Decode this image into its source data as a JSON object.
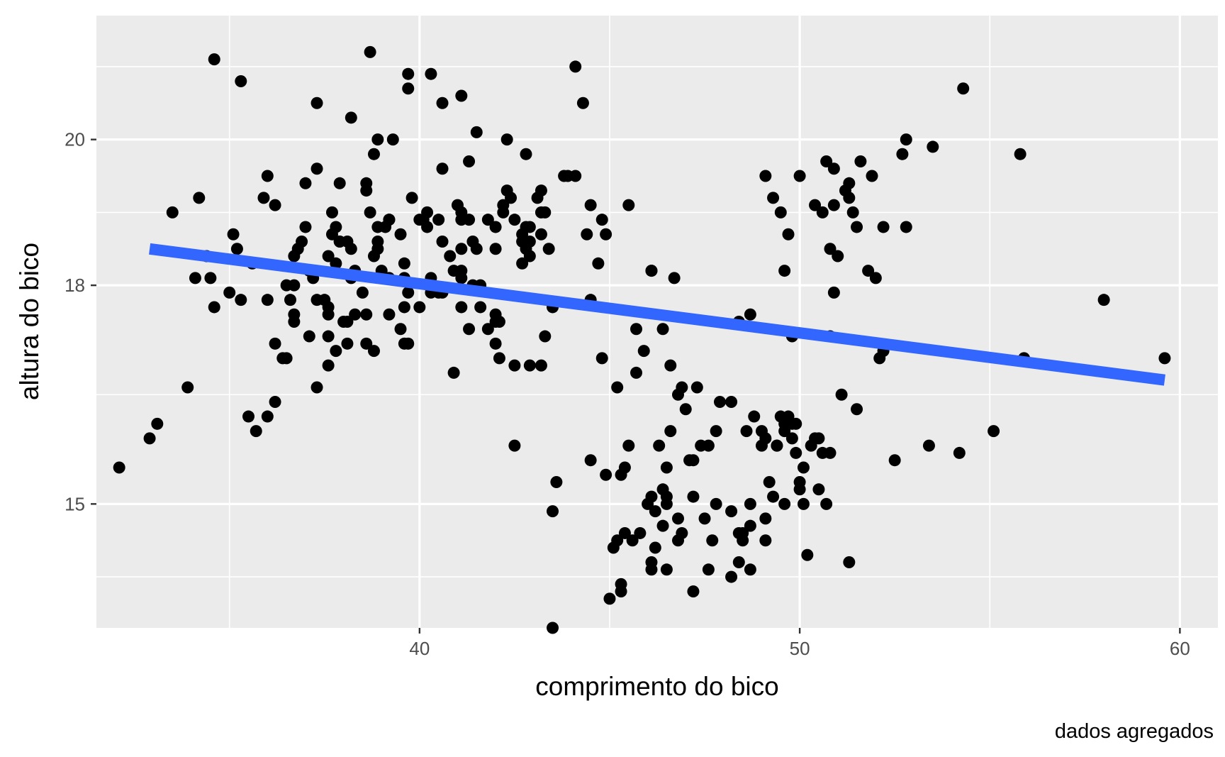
{
  "chart_data": {
    "type": "scatter",
    "title": "",
    "xlabel": "comprimento do bico",
    "ylabel": "altura do bico",
    "caption": "dados agregados",
    "xlim": [
      31.5,
      61
    ],
    "ylim": [
      13.3,
      21.7
    ],
    "x_ticks": [
      40,
      50,
      60
    ],
    "y_ticks": [
      15,
      18,
      20
    ],
    "x_tick_labels": [
      "40",
      "50",
      "60"
    ],
    "y_tick_labels": [
      "15",
      "18",
      "20"
    ],
    "x_minor_ticks": [
      35,
      45,
      55
    ],
    "y_minor_ticks": [
      14,
      16.5,
      19,
      21
    ],
    "grid": true,
    "legend": "none",
    "colors": {
      "panel": "#ebebeb",
      "grid": "#ffffff",
      "point": "#000000",
      "trend": "#3366ff"
    },
    "trend_line": {
      "x": [
        32.9,
        59.6
      ],
      "y": [
        18.5,
        16.7
      ]
    },
    "points": [
      [
        32.9,
        15.9
      ],
      [
        33.9,
        16.6
      ],
      [
        34.2,
        19.2
      ],
      [
        34.6,
        17.7
      ],
      [
        35.1,
        18.7
      ],
      [
        35.2,
        18.5
      ],
      [
        35.3,
        20.8
      ],
      [
        35.3,
        17.8
      ],
      [
        35.6,
        18.3
      ],
      [
        36.0,
        19.5
      ],
      [
        36.2,
        19.1
      ],
      [
        36.2,
        16.4
      ],
      [
        36.0,
        16.2
      ],
      [
        36.5,
        17.0
      ],
      [
        36.5,
        18.0
      ],
      [
        36.7,
        18.0
      ],
      [
        36.7,
        18.4
      ],
      [
        36.7,
        17.6
      ],
      [
        36.7,
        17.5
      ],
      [
        37.0,
        19.4
      ],
      [
        37.0,
        18.8
      ],
      [
        37.1,
        17.3
      ],
      [
        37.1,
        18.2
      ],
      [
        37.3,
        19.6
      ],
      [
        37.3,
        17.8
      ],
      [
        37.3,
        16.6
      ],
      [
        37.5,
        17.8
      ],
      [
        37.6,
        17.7
      ],
      [
        37.6,
        17.6
      ],
      [
        37.6,
        18.4
      ],
      [
        37.6,
        17.3
      ],
      [
        37.7,
        18.7
      ],
      [
        37.7,
        19.0
      ],
      [
        37.8,
        18.8
      ],
      [
        37.8,
        18.3
      ],
      [
        37.9,
        18.6
      ],
      [
        37.9,
        19.4
      ],
      [
        38.0,
        17.5
      ],
      [
        38.1,
        17.2
      ],
      [
        38.1,
        17.5
      ],
      [
        38.2,
        18.5
      ],
      [
        38.2,
        20.3
      ],
      [
        38.3,
        17.6
      ],
      [
        38.3,
        18.2
      ],
      [
        38.6,
        19.4
      ],
      [
        38.6,
        19.3
      ],
      [
        38.6,
        17.2
      ],
      [
        38.6,
        17.6
      ],
      [
        38.7,
        19.0
      ],
      [
        38.8,
        17.1
      ],
      [
        38.8,
        19.8
      ],
      [
        38.9,
        20.0
      ],
      [
        38.9,
        18.6
      ],
      [
        38.9,
        18.8
      ],
      [
        38.9,
        18.5
      ],
      [
        39.1,
        18.8
      ],
      [
        39.2,
        18.9
      ],
      [
        39.2,
        17.6
      ],
      [
        39.2,
        18.1
      ],
      [
        39.2,
        18.9
      ],
      [
        39.3,
        20.0
      ],
      [
        39.5,
        18.7
      ],
      [
        39.6,
        17.7
      ],
      [
        39.6,
        18.3
      ],
      [
        39.7,
        17.2
      ],
      [
        39.7,
        17.9
      ],
      [
        39.7,
        20.9
      ],
      [
        39.8,
        19.2
      ],
      [
        40.0,
        17.7
      ],
      [
        40.0,
        18.9
      ],
      [
        40.2,
        19.0
      ],
      [
        40.2,
        18.8
      ],
      [
        40.3,
        18.1
      ],
      [
        40.3,
        17.9
      ],
      [
        40.3,
        20.9
      ],
      [
        40.5,
        18.9
      ],
      [
        40.6,
        19.6
      ],
      [
        40.6,
        20.5
      ],
      [
        40.8,
        18.4
      ],
      [
        40.9,
        18.2
      ],
      [
        41.0,
        19.1
      ],
      [
        41.1,
        20.6
      ],
      [
        41.1,
        18.2
      ],
      [
        41.1,
        18.5
      ],
      [
        41.1,
        17.7
      ],
      [
        41.1,
        18.1
      ],
      [
        41.1,
        19.0
      ],
      [
        41.1,
        18.9
      ],
      [
        41.3,
        18.9
      ],
      [
        41.3,
        17.4
      ],
      [
        41.4,
        18.0
      ],
      [
        41.5,
        20.1
      ],
      [
        41.5,
        18.5
      ],
      [
        41.8,
        18.9
      ],
      [
        41.8,
        17.4
      ],
      [
        42.0,
        18.5
      ],
      [
        42.0,
        18.8
      ],
      [
        42.0,
        17.6
      ],
      [
        42.0,
        17.5
      ],
      [
        42.1,
        17.0
      ],
      [
        42.1,
        17.5
      ],
      [
        42.2,
        19.0
      ],
      [
        42.2,
        19.1
      ],
      [
        42.3,
        19.3
      ],
      [
        42.3,
        20.0
      ],
      [
        42.4,
        19.2
      ],
      [
        42.5,
        16.9
      ],
      [
        42.5,
        18.9
      ],
      [
        42.7,
        18.7
      ],
      [
        42.7,
        18.3
      ],
      [
        42.7,
        18.6
      ],
      [
        42.8,
        18.8
      ],
      [
        42.9,
        18.8
      ],
      [
        42.9,
        18.6
      ],
      [
        42.9,
        18.4
      ],
      [
        43.1,
        19.2
      ],
      [
        43.2,
        18.7
      ],
      [
        43.2,
        19.3
      ],
      [
        43.2,
        16.9
      ],
      [
        43.3,
        19.0
      ],
      [
        43.5,
        17.7
      ],
      [
        43.5,
        14.9
      ],
      [
        43.6,
        15.3
      ],
      [
        43.9,
        19.5
      ],
      [
        44.1,
        19.5
      ],
      [
        44.1,
        21.0
      ],
      [
        44.3,
        20.5
      ],
      [
        44.5,
        17.8
      ],
      [
        44.5,
        15.6
      ],
      [
        44.7,
        18.3
      ],
      [
        44.8,
        17.0
      ],
      [
        44.8,
        18.9
      ],
      [
        44.9,
        18.7
      ],
      [
        45.0,
        13.7
      ],
      [
        45.3,
        15.4
      ],
      [
        45.3,
        13.8
      ],
      [
        45.4,
        14.6
      ],
      [
        45.5,
        19.1
      ],
      [
        45.7,
        17.4
      ],
      [
        46.1,
        18.2
      ],
      [
        46.2,
        14.4
      ],
      [
        46.1,
        14.1
      ],
      [
        46.1,
        14.2
      ],
      [
        46.1,
        15.1
      ],
      [
        46.1,
        18.2
      ],
      [
        46.4,
        14.7
      ],
      [
        46.5,
        15.0
      ],
      [
        46.5,
        15.1
      ],
      [
        46.5,
        15.5
      ],
      [
        46.5,
        14.1
      ],
      [
        46.6,
        16.9
      ],
      [
        46.8,
        14.5
      ],
      [
        46.8,
        16.5
      ],
      [
        46.8,
        14.8
      ],
      [
        47.1,
        15.6
      ],
      [
        47.2,
        15.1
      ],
      [
        47.2,
        13.8
      ],
      [
        47.2,
        15.6
      ],
      [
        47.4,
        15.8
      ],
      [
        47.5,
        14.8
      ],
      [
        47.6,
        14.1
      ],
      [
        47.7,
        14.5
      ],
      [
        47.8,
        16.0
      ],
      [
        48.2,
        14.0
      ],
      [
        48.2,
        14.9
      ],
      [
        48.4,
        14.6
      ],
      [
        48.4,
        14.2
      ],
      [
        48.5,
        14.5
      ],
      [
        48.5,
        14.6
      ],
      [
        48.7,
        14.7
      ],
      [
        48.7,
        15.0
      ],
      [
        48.7,
        14.1
      ],
      [
        48.8,
        16.2
      ],
      [
        49.0,
        16.0
      ],
      [
        49.1,
        14.5
      ],
      [
        49.1,
        14.8
      ],
      [
        49.1,
        15.9
      ],
      [
        49.1,
        19.5
      ],
      [
        49.2,
        15.3
      ],
      [
        49.3,
        15.1
      ],
      [
        49.4,
        15.8
      ],
      [
        49.5,
        16.2
      ],
      [
        49.5,
        19.0
      ],
      [
        49.6,
        16.0
      ],
      [
        49.6,
        15.0
      ],
      [
        49.6,
        18.2
      ],
      [
        49.6,
        16.1
      ],
      [
        49.7,
        16.2
      ],
      [
        49.8,
        15.9
      ],
      [
        49.8,
        16.1
      ],
      [
        49.8,
        17.3
      ],
      [
        49.9,
        16.1
      ],
      [
        50.0,
        15.2
      ],
      [
        50.0,
        15.3
      ],
      [
        50.0,
        19.5
      ],
      [
        50.1,
        15.0
      ],
      [
        50.2,
        14.3
      ],
      [
        50.3,
        15.8
      ],
      [
        50.5,
        15.9
      ],
      [
        50.5,
        15.2
      ],
      [
        50.7,
        15.0
      ],
      [
        50.8,
        15.7
      ],
      [
        50.8,
        17.3
      ],
      [
        50.8,
        18.5
      ],
      [
        50.9,
        17.9
      ],
      [
        50.9,
        19.1
      ],
      [
        51.1,
        16.5
      ],
      [
        51.3,
        14.2
      ],
      [
        51.3,
        19.2
      ],
      [
        51.3,
        19.4
      ],
      [
        51.4,
        19.0
      ],
      [
        51.5,
        16.3
      ],
      [
        51.9,
        19.5
      ],
      [
        52.0,
        18.1
      ],
      [
        52.1,
        17.0
      ],
      [
        52.2,
        18.8
      ],
      [
        52.2,
        17.1
      ],
      [
        52.5,
        15.6
      ],
      [
        52.7,
        19.8
      ],
      [
        52.8,
        20.0
      ],
      [
        53.4,
        15.8
      ],
      [
        53.5,
        19.9
      ],
      [
        54.2,
        15.7
      ],
      [
        54.3,
        20.7
      ],
      [
        55.1,
        16.0
      ],
      [
        55.8,
        19.8
      ],
      [
        55.9,
        17.0
      ],
      [
        58.0,
        17.8
      ],
      [
        59.6,
        17.0
      ],
      [
        43.8,
        19.5
      ],
      [
        44.9,
        15.4
      ],
      [
        45.2,
        14.5
      ],
      [
        45.6,
        14.5
      ],
      [
        45.8,
        14.6
      ],
      [
        46.0,
        15.0
      ],
      [
        46.4,
        15.2
      ],
      [
        46.6,
        16.0
      ],
      [
        47.0,
        16.3
      ],
      [
        47.3,
        16.6
      ],
      [
        48.2,
        16.4
      ],
      [
        48.4,
        17.5
      ],
      [
        49.0,
        15.8
      ],
      [
        49.9,
        15.7
      ],
      [
        50.4,
        15.9
      ],
      [
        50.6,
        15.7
      ],
      [
        51.0,
        18.4
      ],
      [
        51.5,
        18.8
      ],
      [
        51.8,
        18.2
      ],
      [
        50.4,
        19.1
      ],
      [
        50.6,
        19.0
      ],
      [
        50.9,
        19.6
      ],
      [
        51.2,
        19.3
      ],
      [
        49.7,
        18.7
      ],
      [
        49.3,
        19.2
      ],
      [
        48.7,
        17.6
      ],
      [
        47.9,
        16.4
      ],
      [
        47.6,
        15.8
      ],
      [
        46.9,
        16.6
      ],
      [
        46.7,
        18.1
      ],
      [
        46.4,
        17.4
      ],
      [
        45.9,
        17.1
      ],
      [
        45.7,
        16.8
      ],
      [
        45.5,
        15.8
      ],
      [
        45.4,
        15.5
      ],
      [
        45.2,
        16.6
      ],
      [
        44.5,
        19.1
      ],
      [
        43.4,
        18.5
      ],
      [
        43.3,
        17.3
      ],
      [
        42.9,
        16.9
      ],
      [
        42.8,
        18.5
      ],
      [
        42.0,
        17.2
      ],
      [
        41.6,
        18.0
      ],
      [
        41.6,
        17.7
      ],
      [
        41.4,
        18.6
      ],
      [
        40.6,
        17.9
      ],
      [
        40.6,
        18.6
      ],
      [
        40.5,
        17.9
      ],
      [
        40.1,
        18.9
      ],
      [
        39.6,
        18.1
      ],
      [
        39.5,
        17.4
      ],
      [
        39.0,
        18.2
      ],
      [
        38.8,
        18.4
      ],
      [
        38.5,
        17.9
      ],
      [
        38.1,
        18.6
      ],
      [
        37.9,
        18.6
      ],
      [
        37.8,
        17.1
      ],
      [
        37.6,
        16.9
      ],
      [
        37.2,
        18.1
      ],
      [
        36.9,
        18.6
      ],
      [
        36.6,
        17.8
      ],
      [
        36.4,
        17.0
      ],
      [
        36.2,
        17.2
      ],
      [
        35.9,
        19.2
      ],
      [
        35.7,
        16.0
      ],
      [
        35.5,
        16.2
      ],
      [
        35.0,
        17.9
      ],
      [
        34.6,
        21.1
      ],
      [
        34.5,
        18.1
      ],
      [
        34.4,
        18.4
      ],
      [
        34.1,
        18.1
      ],
      [
        33.5,
        19.0
      ],
      [
        33.1,
        16.1
      ],
      [
        32.1,
        15.5
      ],
      [
        36.0,
        17.8
      ],
      [
        36.8,
        18.5
      ],
      [
        38.2,
        18.1
      ],
      [
        39.6,
        17.2
      ],
      [
        40.9,
        16.8
      ],
      [
        42.5,
        15.8
      ],
      [
        43.5,
        13.3
      ],
      [
        45.1,
        14.4
      ],
      [
        46.3,
        15.8
      ],
      [
        47.8,
        15.0
      ],
      [
        48.6,
        16.0
      ],
      [
        49.4,
        15.8
      ],
      [
        50.1,
        15.5
      ],
      [
        50.7,
        19.7
      ],
      [
        51.6,
        19.7
      ],
      [
        52.8,
        18.8
      ],
      [
        37.3,
        20.5
      ],
      [
        38.7,
        21.2
      ],
      [
        39.7,
        20.7
      ],
      [
        41.3,
        19.7
      ],
      [
        42.8,
        19.8
      ],
      [
        43.2,
        19.0
      ],
      [
        44.4,
        18.7
      ],
      [
        46.9,
        14.6
      ],
      [
        46.2,
        14.9
      ],
      [
        45.3,
        13.9
      ]
    ]
  }
}
